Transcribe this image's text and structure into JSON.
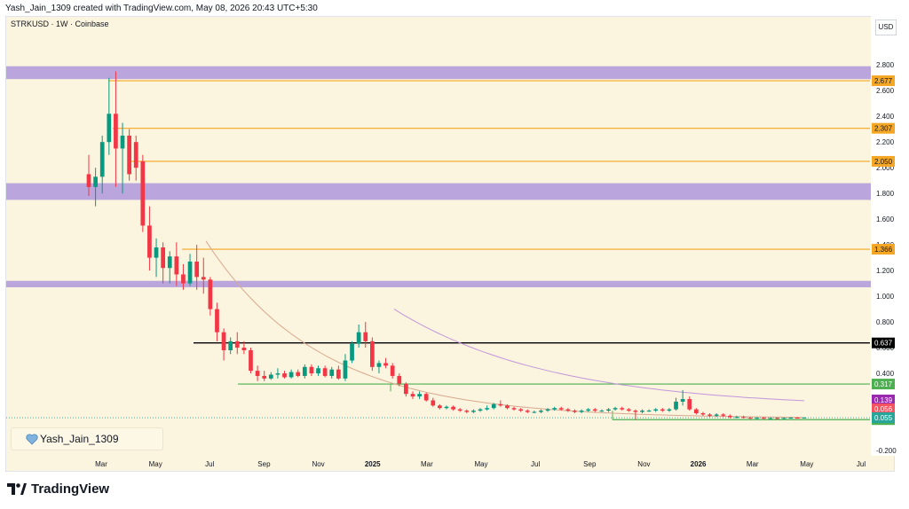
{
  "header": {
    "caption": "Yash_Jain_1309 created with TradingView.com, May 08, 2026 20:43 UTC+5:30",
    "symbol_line": "STRKUSD · 1W · Coinbase",
    "currency": "USD"
  },
  "watermark": {
    "text": "Yash_Jain_1309"
  },
  "footer": {
    "brand": "TradingView"
  },
  "colors": {
    "background": "#fbf4de",
    "zone": "#b39ddb",
    "resistance": "#f5a623",
    "support_black": "#000000",
    "support_green": "#4caf50",
    "candle_up": "#089981",
    "candle_down": "#f23645",
    "ema_fast": "#d8a890",
    "ema_slow": "#c297dc"
  },
  "chart_data": {
    "type": "candlestick",
    "instrument": "STRKUSD",
    "timeframe": "1W",
    "exchange": "Coinbase",
    "ylim": [
      -0.2,
      2.85
    ],
    "y_ticks": [
      "2.800",
      "2.600",
      "2.400",
      "2.200",
      "2.000",
      "1.800",
      "1.600",
      "1.400",
      "1.200",
      "1.000",
      "0.800",
      "0.600",
      "0.400",
      "0.200",
      "-0.200"
    ],
    "x_ticks": [
      "Mar",
      "May",
      "Jul",
      "Sep",
      "Nov",
      "2025",
      "Mar",
      "May",
      "Jul",
      "Sep",
      "Nov",
      "2026",
      "Mar",
      "May",
      "Jul"
    ],
    "zones": [
      {
        "low": 2.69,
        "high": 2.79
      },
      {
        "low": 1.75,
        "high": 1.88
      },
      {
        "low": 1.07,
        "high": 1.12
      }
    ],
    "levels": [
      {
        "value": 2.677,
        "label": "2.677",
        "kind": "resistance"
      },
      {
        "value": 2.307,
        "label": "2.307",
        "kind": "resistance"
      },
      {
        "value": 2.05,
        "label": "2.050",
        "kind": "resistance"
      },
      {
        "value": 1.366,
        "label": "1.366",
        "kind": "resistance"
      },
      {
        "value": 0.637,
        "label": "0.637",
        "kind": "support_black"
      },
      {
        "value": 0.317,
        "label": "0.317",
        "kind": "support_green"
      },
      {
        "value": 0.04,
        "label": "0.040",
        "kind": "support_green"
      }
    ],
    "price_tags": [
      {
        "value": 0.139,
        "label": "0.139",
        "color": "#9c27b0"
      },
      {
        "value": 0.056,
        "label": "0.056",
        "color": "#f7525f"
      },
      {
        "value": 0.055,
        "label": "0.055",
        "color": "#26a69a"
      }
    ],
    "candles": [
      [
        1.95,
        2.1,
        1.78,
        1.85
      ],
      [
        1.85,
        2.0,
        1.7,
        1.93
      ],
      [
        1.93,
        2.25,
        1.8,
        2.2
      ],
      [
        2.2,
        2.7,
        2.1,
        2.42
      ],
      [
        2.42,
        2.75,
        1.85,
        2.15
      ],
      [
        2.15,
        2.35,
        1.8,
        2.25
      ],
      [
        2.25,
        2.3,
        1.9,
        1.95
      ],
      [
        2.2,
        2.25,
        1.9,
        2.0
      ],
      [
        2.05,
        2.1,
        1.5,
        1.55
      ],
      [
        1.55,
        1.7,
        1.2,
        1.3
      ],
      [
        1.3,
        1.45,
        1.15,
        1.38
      ],
      [
        1.38,
        1.42,
        1.1,
        1.22
      ],
      [
        1.22,
        1.35,
        1.1,
        1.31
      ],
      [
        1.31,
        1.42,
        1.08,
        1.17
      ],
      [
        1.17,
        1.25,
        1.05,
        1.1
      ],
      [
        1.1,
        1.33,
        1.08,
        1.27
      ],
      [
        1.27,
        1.4,
        1.05,
        1.15
      ],
      [
        1.15,
        1.3,
        1.02,
        1.13
      ],
      [
        1.13,
        1.15,
        0.85,
        0.9
      ],
      [
        0.9,
        0.95,
        0.65,
        0.72
      ],
      [
        0.72,
        0.75,
        0.5,
        0.58
      ],
      [
        0.58,
        0.68,
        0.55,
        0.65
      ],
      [
        0.65,
        0.72,
        0.55,
        0.6
      ],
      [
        0.6,
        0.65,
        0.55,
        0.58
      ],
      [
        0.58,
        0.6,
        0.4,
        0.42
      ],
      [
        0.42,
        0.46,
        0.34,
        0.38
      ],
      [
        0.38,
        0.42,
        0.34,
        0.36
      ],
      [
        0.36,
        0.41,
        0.35,
        0.39
      ],
      [
        0.39,
        0.44,
        0.36,
        0.4
      ],
      [
        0.4,
        0.42,
        0.36,
        0.37
      ],
      [
        0.37,
        0.43,
        0.36,
        0.41
      ],
      [
        0.41,
        0.43,
        0.37,
        0.38
      ],
      [
        0.38,
        0.47,
        0.36,
        0.45
      ],
      [
        0.45,
        0.47,
        0.38,
        0.4
      ],
      [
        0.4,
        0.46,
        0.38,
        0.44
      ],
      [
        0.44,
        0.46,
        0.37,
        0.38
      ],
      [
        0.38,
        0.45,
        0.36,
        0.43
      ],
      [
        0.43,
        0.46,
        0.35,
        0.36
      ],
      [
        0.36,
        0.55,
        0.34,
        0.5
      ],
      [
        0.5,
        0.65,
        0.48,
        0.63
      ],
      [
        0.63,
        0.78,
        0.6,
        0.72
      ],
      [
        0.72,
        0.8,
        0.6,
        0.65
      ],
      [
        0.65,
        0.68,
        0.42,
        0.45
      ],
      [
        0.45,
        0.5,
        0.4,
        0.48
      ],
      [
        0.48,
        0.52,
        0.44,
        0.46
      ],
      [
        0.46,
        0.48,
        0.36,
        0.38
      ],
      [
        0.38,
        0.4,
        0.3,
        0.32
      ],
      [
        0.32,
        0.33,
        0.22,
        0.24
      ],
      [
        0.24,
        0.26,
        0.2,
        0.22
      ],
      [
        0.22,
        0.26,
        0.2,
        0.24
      ],
      [
        0.24,
        0.25,
        0.18,
        0.19
      ],
      [
        0.19,
        0.21,
        0.14,
        0.15
      ],
      [
        0.15,
        0.16,
        0.12,
        0.13
      ],
      [
        0.13,
        0.15,
        0.12,
        0.14
      ],
      [
        0.14,
        0.15,
        0.11,
        0.12
      ],
      [
        0.12,
        0.13,
        0.1,
        0.11
      ],
      [
        0.11,
        0.12,
        0.09,
        0.1
      ],
      [
        0.1,
        0.12,
        0.09,
        0.11
      ],
      [
        0.11,
        0.13,
        0.1,
        0.12
      ],
      [
        0.12,
        0.15,
        0.11,
        0.13
      ],
      [
        0.13,
        0.17,
        0.12,
        0.16
      ],
      [
        0.16,
        0.19,
        0.14,
        0.15
      ],
      [
        0.15,
        0.16,
        0.12,
        0.13
      ],
      [
        0.13,
        0.14,
        0.11,
        0.12
      ],
      [
        0.12,
        0.13,
        0.1,
        0.11
      ],
      [
        0.11,
        0.12,
        0.09,
        0.1
      ],
      [
        0.1,
        0.11,
        0.09,
        0.1
      ],
      [
        0.1,
        0.12,
        0.09,
        0.11
      ],
      [
        0.11,
        0.13,
        0.1,
        0.12
      ],
      [
        0.12,
        0.14,
        0.11,
        0.13
      ],
      [
        0.13,
        0.14,
        0.11,
        0.12
      ],
      [
        0.12,
        0.13,
        0.1,
        0.11
      ],
      [
        0.11,
        0.12,
        0.09,
        0.1
      ],
      [
        0.1,
        0.12,
        0.09,
        0.11
      ],
      [
        0.11,
        0.13,
        0.1,
        0.12
      ],
      [
        0.12,
        0.13,
        0.1,
        0.11
      ],
      [
        0.11,
        0.12,
        0.1,
        0.11
      ],
      [
        0.11,
        0.13,
        0.1,
        0.12
      ],
      [
        0.12,
        0.14,
        0.11,
        0.13
      ],
      [
        0.13,
        0.14,
        0.11,
        0.12
      ],
      [
        0.12,
        0.13,
        0.1,
        0.11
      ],
      [
        0.11,
        0.12,
        0.04,
        0.1
      ],
      [
        0.1,
        0.12,
        0.09,
        0.11
      ],
      [
        0.11,
        0.12,
        0.1,
        0.11
      ],
      [
        0.11,
        0.13,
        0.1,
        0.12
      ],
      [
        0.12,
        0.13,
        0.1,
        0.11
      ],
      [
        0.11,
        0.13,
        0.1,
        0.12
      ],
      [
        0.12,
        0.21,
        0.11,
        0.18
      ],
      [
        0.18,
        0.27,
        0.15,
        0.2
      ],
      [
        0.2,
        0.22,
        0.11,
        0.12
      ],
      [
        0.12,
        0.13,
        0.08,
        0.09
      ],
      [
        0.09,
        0.1,
        0.07,
        0.08
      ],
      [
        0.08,
        0.09,
        0.06,
        0.07
      ],
      [
        0.07,
        0.09,
        0.06,
        0.08
      ],
      [
        0.08,
        0.09,
        0.06,
        0.07
      ],
      [
        0.07,
        0.08,
        0.05,
        0.06
      ],
      [
        0.06,
        0.07,
        0.05,
        0.06
      ],
      [
        0.06,
        0.07,
        0.05,
        0.055
      ],
      [
        0.055,
        0.06,
        0.045,
        0.05
      ],
      [
        0.05,
        0.058,
        0.045,
        0.054
      ],
      [
        0.054,
        0.06,
        0.045,
        0.05
      ],
      [
        0.05,
        0.056,
        0.044,
        0.052
      ],
      [
        0.052,
        0.058,
        0.046,
        0.05
      ],
      [
        0.05,
        0.056,
        0.045,
        0.053
      ],
      [
        0.053,
        0.058,
        0.048,
        0.055
      ],
      [
        0.055,
        0.06,
        0.05,
        0.054
      ],
      [
        0.054,
        0.06,
        0.05,
        0.056
      ]
    ]
  }
}
